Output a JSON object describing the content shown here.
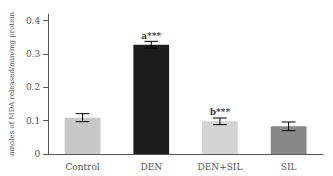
{
  "chart_data": {
    "type": "bar",
    "categories": [
      "Control",
      "DEN",
      "DEN+SIL",
      "SIL"
    ],
    "values": [
      0.109,
      0.328,
      0.098,
      0.083
    ],
    "errors": [
      0.012,
      0.01,
      0.01,
      0.013
    ],
    "colors": [
      "#c8c8c8",
      "#1c1c1c",
      "#d4d4d4",
      "#888888"
    ],
    "annotations": [
      {
        "category": "DEN",
        "y": 0.342,
        "text": "a***"
      },
      {
        "category": "DEN+SIL",
        "y": 0.112,
        "text": "b***"
      }
    ],
    "ylabel": "nmoles of MDA released/min/mg protein",
    "ylim": [
      0,
      0.42
    ],
    "yticks": [
      0,
      0.1,
      0.2,
      0.3,
      0.4
    ],
    "grid": false
  }
}
